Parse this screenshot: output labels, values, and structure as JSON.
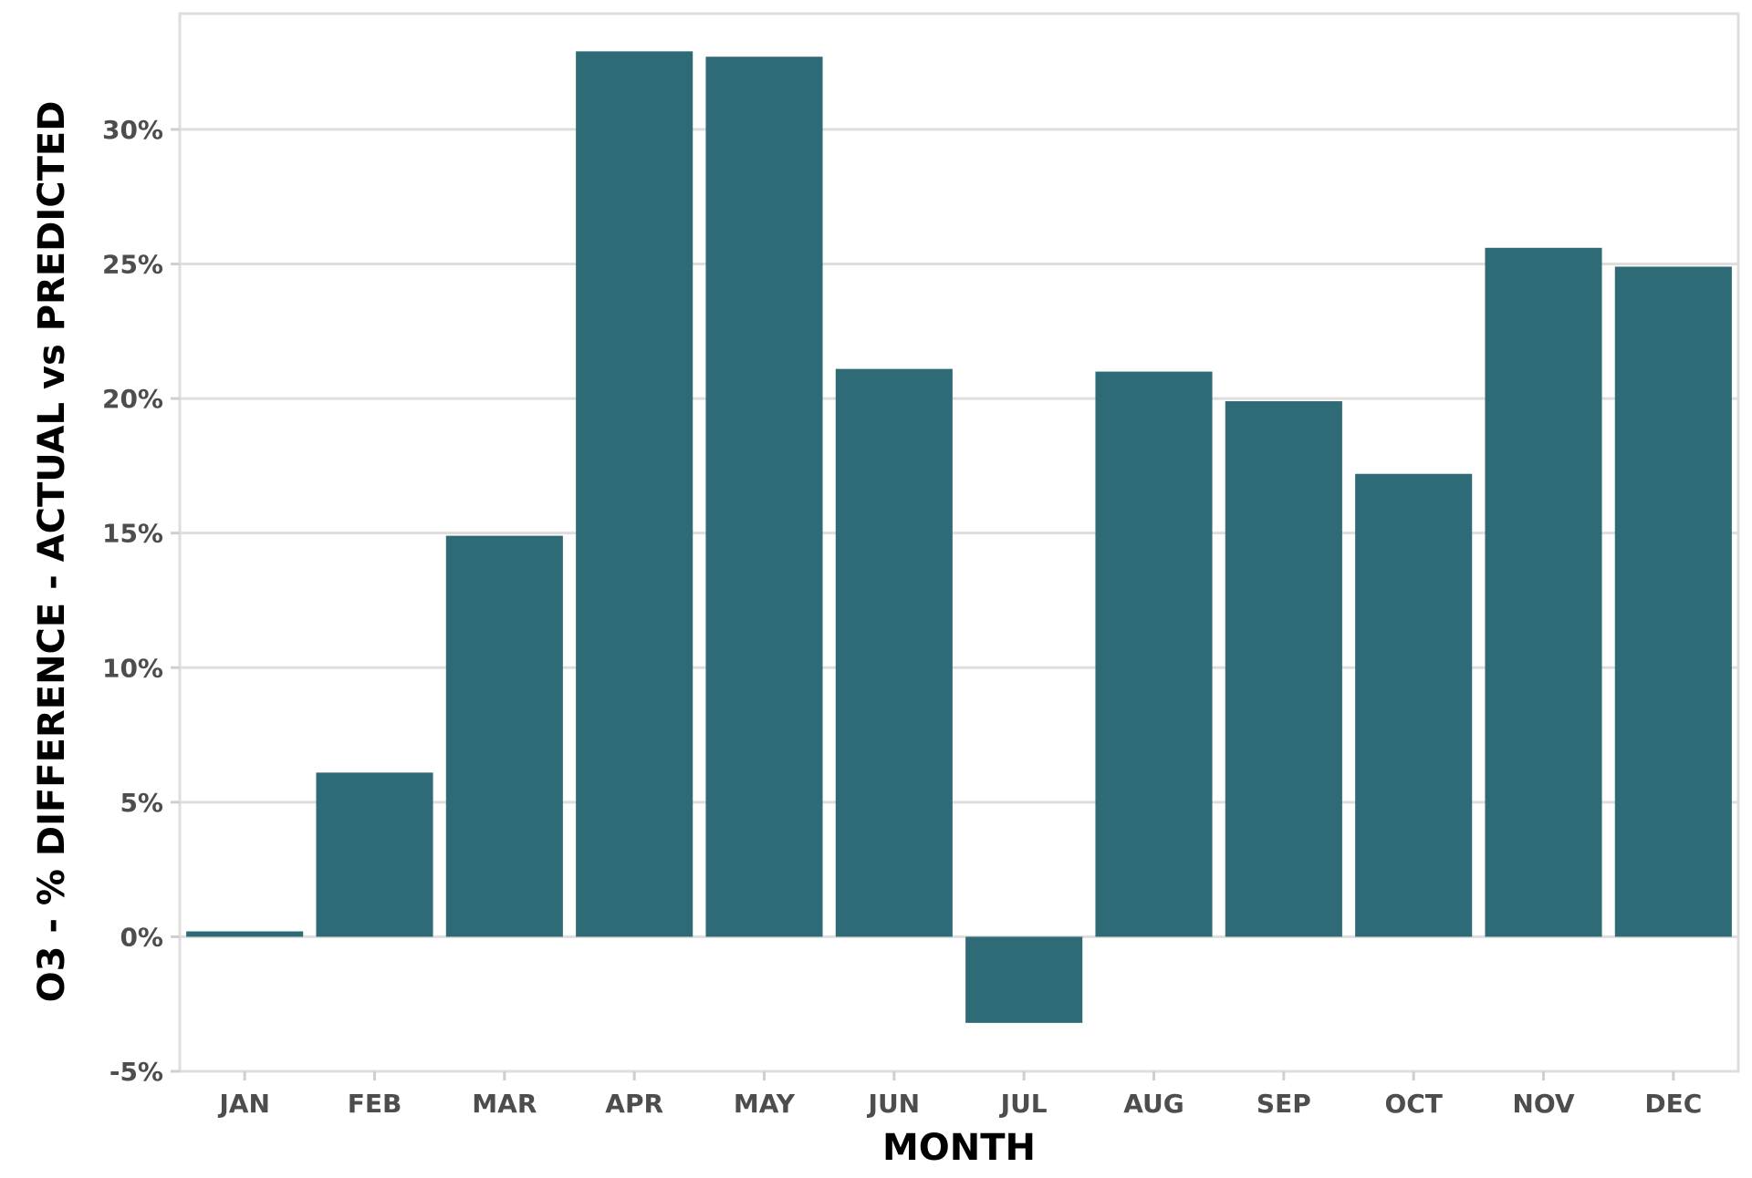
{
  "colors": {
    "bar": "#2e6b77",
    "grid": "#dedede",
    "tick_text": "#4d4d4d"
  },
  "chart_data": {
    "type": "bar",
    "categories": [
      "JAN",
      "FEB",
      "MAR",
      "APR",
      "MAY",
      "JUN",
      "JUL",
      "AUG",
      "SEP",
      "OCT",
      "NOV",
      "DEC"
    ],
    "values": [
      0.2,
      6.1,
      14.9,
      32.9,
      32.7,
      21.1,
      -3.2,
      21.0,
      19.9,
      17.2,
      25.6,
      24.9
    ],
    "xlabel": "MONTH",
    "ylabel": "O3 - % DIFFERENCE - ACTUAL vs PREDICTED",
    "ylim": [
      -5,
      35
    ],
    "yticks": [
      -5,
      0,
      5,
      10,
      15,
      20,
      25,
      30
    ],
    "ytick_labels": [
      "-5%",
      "0%",
      "5%",
      "10%",
      "15%",
      "20%",
      "25%",
      "30%"
    ],
    "grid": true,
    "legend": "none"
  }
}
